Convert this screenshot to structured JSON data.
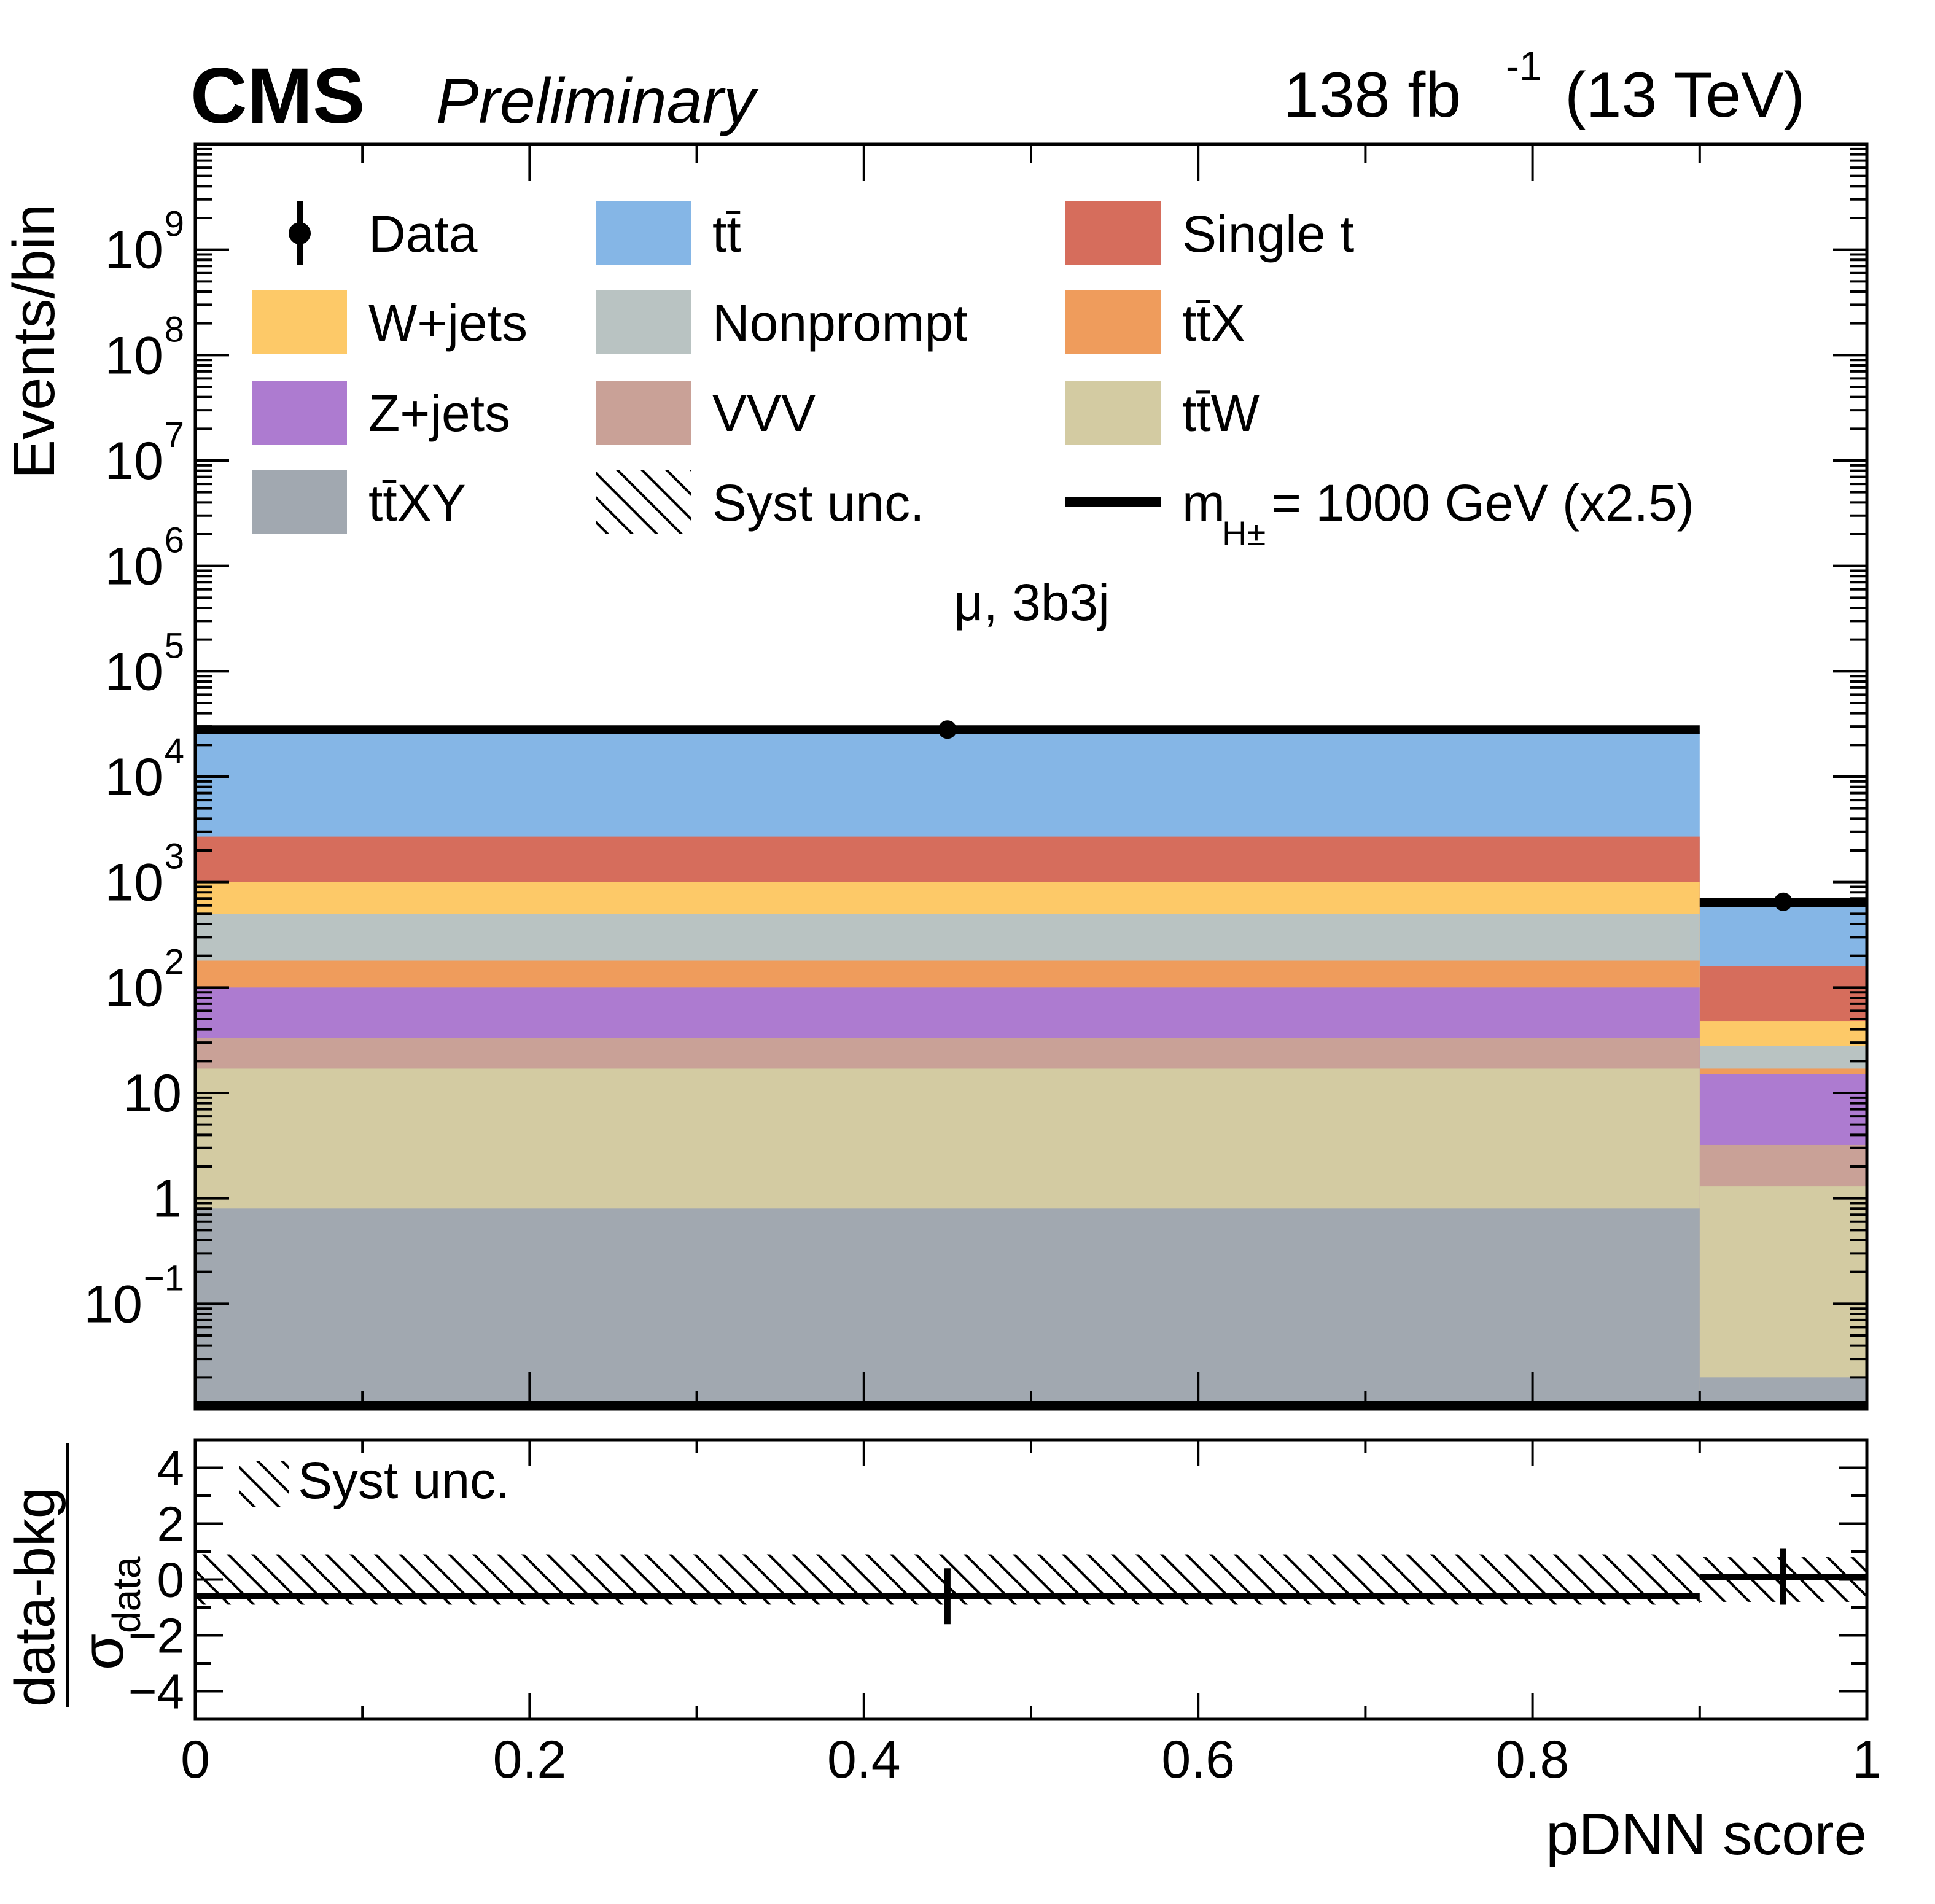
{
  "header": {
    "experiment": "CMS",
    "status": "Preliminary",
    "lumi_value": "138 fb",
    "lumi_exponent": "-1",
    "energy": "(13 TeV)"
  },
  "colors": {
    "ttbar": "#85b6e6",
    "single_t": "#d66d5c",
    "wjets": "#fdc968",
    "nonprompt": "#b9c3c2",
    "ttx": "#ef9c5c",
    "zjets": "#ad7bd0",
    "vvv": "#c9a197",
    "ttw": "#d3cba2",
    "ttxy": "#a1a8b0",
    "signal": "#000000",
    "data": "#000000"
  },
  "chart_data": [
    {
      "type": "bar",
      "stacked": true,
      "title": "μ, 3b3j",
      "xlabel": "pDNN score",
      "ylabel": "Events/bin",
      "yscale": "log",
      "ylim": [
        0.01,
        10000000000.0
      ],
      "xlim": [
        0,
        1
      ],
      "bin_edges": [
        0,
        0.9,
        1.0
      ],
      "y_ticks": [
        {
          "value": 0.1,
          "base": "10",
          "exp": "−1"
        },
        {
          "value": 1,
          "base": "1",
          "exp": ""
        },
        {
          "value": 10,
          "base": "10",
          "exp": ""
        },
        {
          "value": 100,
          "base": "10",
          "exp": "2"
        },
        {
          "value": 1000,
          "base": "10",
          "exp": "3"
        },
        {
          "value": 10000,
          "base": "10",
          "exp": "4"
        },
        {
          "value": 100000,
          "base": "10",
          "exp": "5"
        },
        {
          "value": 1000000,
          "base": "10",
          "exp": "6"
        },
        {
          "value": 10000000,
          "base": "10",
          "exp": "7"
        },
        {
          "value": 100000000,
          "base": "10",
          "exp": "8"
        },
        {
          "value": 1000000000,
          "base": "10",
          "exp": "9"
        }
      ],
      "series": [
        {
          "name": "tt̄XY",
          "key": "ttxy",
          "cumulative_tops": [
            0.8,
            0.02
          ]
        },
        {
          "name": "tt̄W",
          "key": "ttw",
          "cumulative_tops": [
            17,
            1.3
          ]
        },
        {
          "name": "VVV",
          "key": "vvv",
          "cumulative_tops": [
            33,
            3.2
          ]
        },
        {
          "name": "Z+jets",
          "key": "zjets",
          "cumulative_tops": [
            100,
            15
          ]
        },
        {
          "name": "tt̄X",
          "key": "ttx",
          "cumulative_tops": [
            180,
            17
          ]
        },
        {
          "name": "Nonprompt",
          "key": "nonprompt",
          "cumulative_tops": [
            500,
            28
          ]
        },
        {
          "name": "W+jets",
          "key": "wjets",
          "cumulative_tops": [
            1000,
            48
          ]
        },
        {
          "name": "Single t",
          "key": "single_t",
          "cumulative_tops": [
            2700,
            160
          ]
        },
        {
          "name": "tt̄",
          "key": "ttbar",
          "cumulative_tops": [
            27000,
            620
          ]
        }
      ],
      "data_points": [
        {
          "x": 0.45,
          "y": 28000
        },
        {
          "x": 0.95,
          "y": 650
        }
      ],
      "signal": {
        "name": "m_{H±} = 1000 GeV (x2.5)",
        "values": [
          28000,
          640
        ]
      }
    },
    {
      "type": "line",
      "ylabel_numerator": "data-bkg",
      "ylabel_denominator": "σ",
      "ylabel_denominator_sub": "data",
      "xlabel": "pDNN score",
      "ylim": [
        -5,
        5
      ],
      "xlim": [
        0,
        1
      ],
      "x_ticks": [
        "0",
        "0.2",
        "0.4",
        "0.6",
        "0.8",
        "1"
      ],
      "y_ticks": [
        "−4",
        "−2",
        "0",
        "2",
        "4"
      ],
      "pulls": [
        {
          "x": 0.45,
          "value": -0.6,
          "err": 1.0
        },
        {
          "x": 0.95,
          "value": 0.1,
          "err": 1.0
        }
      ],
      "syst_band": [
        {
          "bin": [
            0,
            0.9
          ],
          "lo": -0.9,
          "hi": 0.9
        },
        {
          "bin": [
            0.9,
            1.0
          ],
          "lo": -0.8,
          "hi": 0.8
        }
      ]
    }
  ],
  "legend": {
    "entries": [
      {
        "label": "Data",
        "kind": "data",
        "key": "data"
      },
      {
        "label": "tt̄",
        "kind": "box",
        "key": "ttbar"
      },
      {
        "label": "Single t",
        "kind": "box",
        "key": "single_t"
      },
      {
        "label": "W+jets",
        "kind": "box",
        "key": "wjets"
      },
      {
        "label": "Nonprompt",
        "kind": "box",
        "key": "nonprompt"
      },
      {
        "label": "tt̄X",
        "kind": "box",
        "key": "ttx"
      },
      {
        "label": "Z+jets",
        "kind": "box",
        "key": "zjets"
      },
      {
        "label": "VVV",
        "kind": "box",
        "key": "vvv"
      },
      {
        "label": "tt̄W",
        "kind": "box",
        "key": "ttw"
      },
      {
        "label": "tt̄XY",
        "kind": "box",
        "key": "ttxy"
      },
      {
        "label": "Syst unc.",
        "kind": "hatch",
        "key": "syst"
      },
      {
        "label": "m",
        "sub": "H±",
        "rest": " = 1000 GeV (x2.5)",
        "kind": "line",
        "key": "signal"
      }
    ],
    "ratio_label": "Syst unc."
  }
}
